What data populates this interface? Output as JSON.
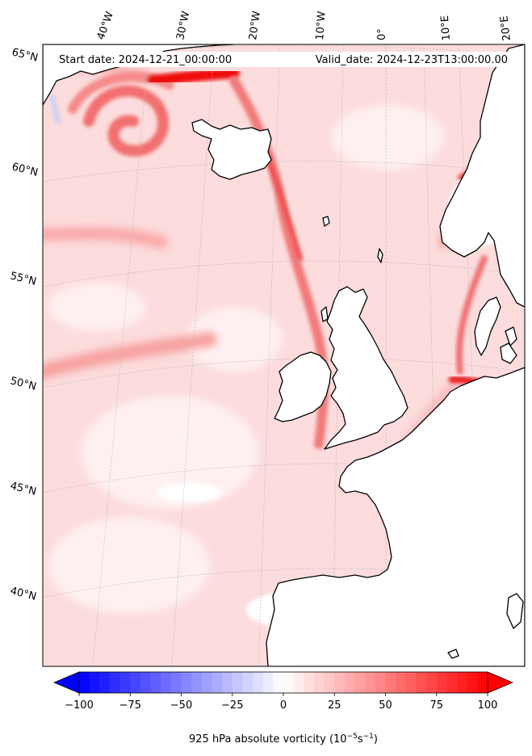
{
  "map": {
    "header": {
      "start": "Start date: 2024-12-21_00:00:00",
      "valid": "Valid_date: 2024-12-23T13:00:00.00"
    },
    "lon_labels": [
      "40°W",
      "30°W",
      "20°W",
      "10°W",
      "0°",
      "10°E",
      "20°E"
    ],
    "lat_labels": [
      "65°N",
      "60°N",
      "55°N",
      "50°N",
      "45°N",
      "40°N"
    ]
  },
  "colorbar": {
    "ticks": [
      "−100",
      "−75",
      "−50",
      "−25",
      "0",
      "25",
      "50",
      "75",
      "100"
    ],
    "min": -100,
    "max": 100,
    "label_prefix": "925 hPa absolute vorticity (10",
    "label_exp1": "−5",
    "label_mid": "s",
    "label_exp2": "−1",
    "label_suffix": ")"
  },
  "colors": {
    "negative_max": "#0000ff",
    "neutral": "#ffffff",
    "positive_max": "#ff0000",
    "field_base": "#fcdcdc"
  }
}
